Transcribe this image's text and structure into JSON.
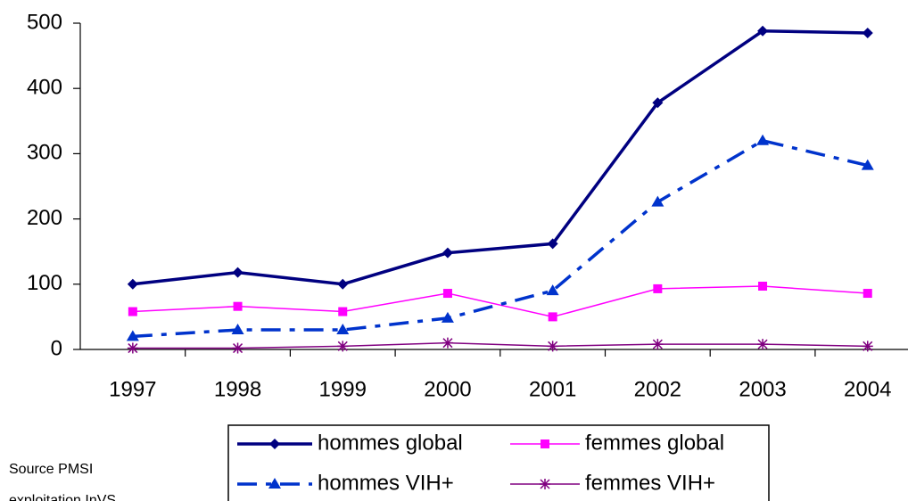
{
  "chart_data": {
    "type": "line",
    "categories": [
      "1997",
      "1998",
      "1999",
      "2000",
      "2001",
      "2002",
      "2003",
      "2004"
    ],
    "series": [
      {
        "name": "hommes global",
        "color": "#000080",
        "marker": "diamond",
        "dash": "solid",
        "values": [
          100,
          118,
          100,
          148,
          162,
          378,
          488,
          485
        ]
      },
      {
        "name": "femmes global",
        "color": "#ff00ff",
        "marker": "square",
        "dash": "solid",
        "values": [
          58,
          66,
          58,
          86,
          50,
          93,
          97,
          86
        ]
      },
      {
        "name": "hommes VIH+",
        "color": "#0033cc",
        "marker": "triangle",
        "dash": "dashdot",
        "values": [
          20,
          30,
          30,
          48,
          90,
          226,
          320,
          282
        ]
      },
      {
        "name": "femmes VIH+",
        "color": "#800080",
        "marker": "asterisk",
        "dash": "solid",
        "values": [
          2,
          2,
          5,
          10,
          5,
          8,
          8,
          5
        ]
      }
    ],
    "ylim": [
      0,
      500
    ],
    "yticks": [
      0,
      100,
      200,
      300,
      400,
      500
    ],
    "grid": false,
    "legend": "bottom",
    "source": [
      "Source PMSI",
      "exploitation InVS"
    ]
  }
}
